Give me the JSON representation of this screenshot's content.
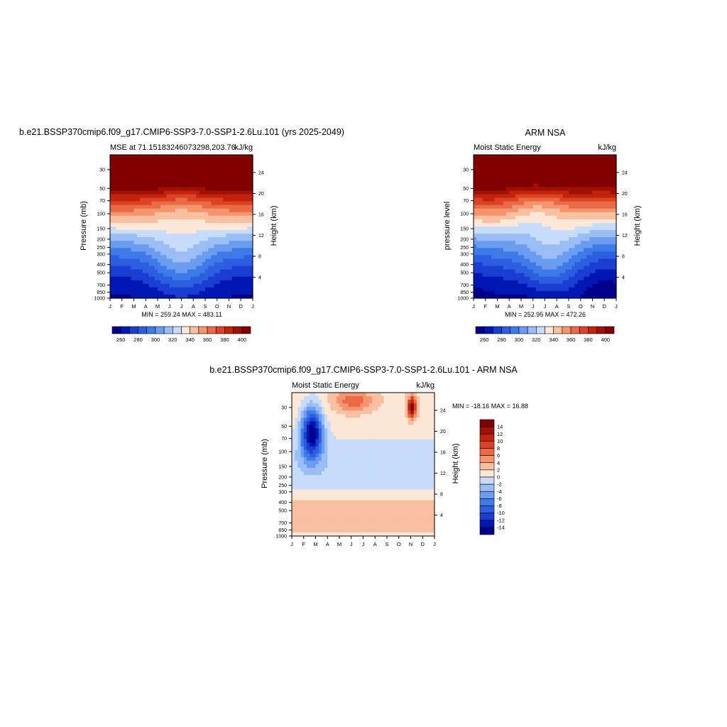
{
  "chart_data": [
    {
      "type": "heatmap",
      "title": "b.e21.BSSP370cmip6.f09_g17.CMIP6-SSP3-7.0-SSP1-2.6Lu.101 (yrs 2025-2049)",
      "left_label": "MSE at 71.15183246073298,203.76",
      "right_label": "kJ/kg",
      "ylabel": "Pressure (mb)",
      "ylabel_right": "Height (km)",
      "x_ticks": [
        "J",
        "F",
        "M",
        "A",
        "M",
        "J",
        "J",
        "A",
        "S",
        "O",
        "N",
        "D",
        "J"
      ],
      "y_ticks": [
        30,
        50,
        70,
        100,
        150,
        200,
        250,
        300,
        400,
        500,
        700,
        850,
        1000
      ],
      "y_ticks_right": [
        4,
        8,
        12,
        16,
        20,
        24
      ],
      "stats": "MIN = 259.24 MAX = 483.11",
      "colorbar_ticks": [
        260,
        280,
        300,
        320,
        340,
        360,
        380,
        400
      ],
      "levels": [
        260,
        270,
        280,
        290,
        300,
        310,
        320,
        330,
        340,
        350,
        360,
        370,
        380,
        390,
        400
      ],
      "min": 259.24,
      "max": 483.11
    },
    {
      "type": "heatmap",
      "title": "ARM NSA",
      "left_label": "Moist Static Energy",
      "right_label": "kJ/kg",
      "ylabel": "pressure level",
      "ylabel_right": "Height (km)",
      "x_ticks": [
        "J",
        "F",
        "M",
        "A",
        "M",
        "J",
        "J",
        "A",
        "S",
        "O",
        "N",
        "D",
        "J"
      ],
      "y_ticks": [
        30,
        50,
        70,
        100,
        150,
        200,
        250,
        300,
        400,
        500,
        700,
        850,
        1000
      ],
      "y_ticks_right": [
        4,
        8,
        12,
        16,
        20,
        24
      ],
      "stats": "MIN = 252.95 MAX = 472.26",
      "colorbar_ticks": [
        260,
        280,
        300,
        320,
        340,
        360,
        380,
        400
      ],
      "levels": [
        260,
        270,
        280,
        290,
        300,
        310,
        320,
        330,
        340,
        350,
        360,
        370,
        380,
        390,
        400
      ],
      "min": 252.95,
      "max": 472.26
    },
    {
      "type": "heatmap",
      "title": "b.e21.BSSP370cmip6.f09_g17.CMIP6-SSP3-7.0-SSP1-2.6Lu.101 - ARM NSA",
      "left_label": "Moist Static Energy",
      "right_label": "kJ/kg",
      "ylabel": "Pressure (mb)",
      "ylabel_right": "Height (km)",
      "x_ticks": [
        "J",
        "F",
        "M",
        "A",
        "M",
        "J",
        "J",
        "A",
        "S",
        "O",
        "N",
        "D",
        "J"
      ],
      "y_ticks": [
        30,
        50,
        70,
        100,
        150,
        200,
        250,
        300,
        400,
        500,
        700,
        850,
        1000
      ],
      "y_ticks_right": [
        4,
        8,
        12,
        16,
        20,
        24
      ],
      "stats": "MIN = -18.16 MAX =  16.88",
      "colorbar_ticks": [
        14,
        12,
        10,
        8,
        6,
        4,
        2,
        0,
        -2,
        -4,
        -6,
        -8,
        -10,
        -12,
        -14
      ],
      "levels": [
        -14,
        -12,
        -10,
        -8,
        -6,
        -4,
        -2,
        0,
        2,
        4,
        6,
        8,
        10,
        12,
        14
      ],
      "min": -18.16,
      "max": 16.88
    }
  ],
  "palette": [
    "#00008b",
    "#0017b3",
    "#1a3ed1",
    "#2c5fe0",
    "#3f7ae9",
    "#6b9cf0",
    "#9bbdf5",
    "#c7dcfb",
    "#fde8d7",
    "#f8bfa0",
    "#f39670",
    "#ea6a46",
    "#dc4322",
    "#c1230c",
    "#9f1005",
    "#800000"
  ]
}
